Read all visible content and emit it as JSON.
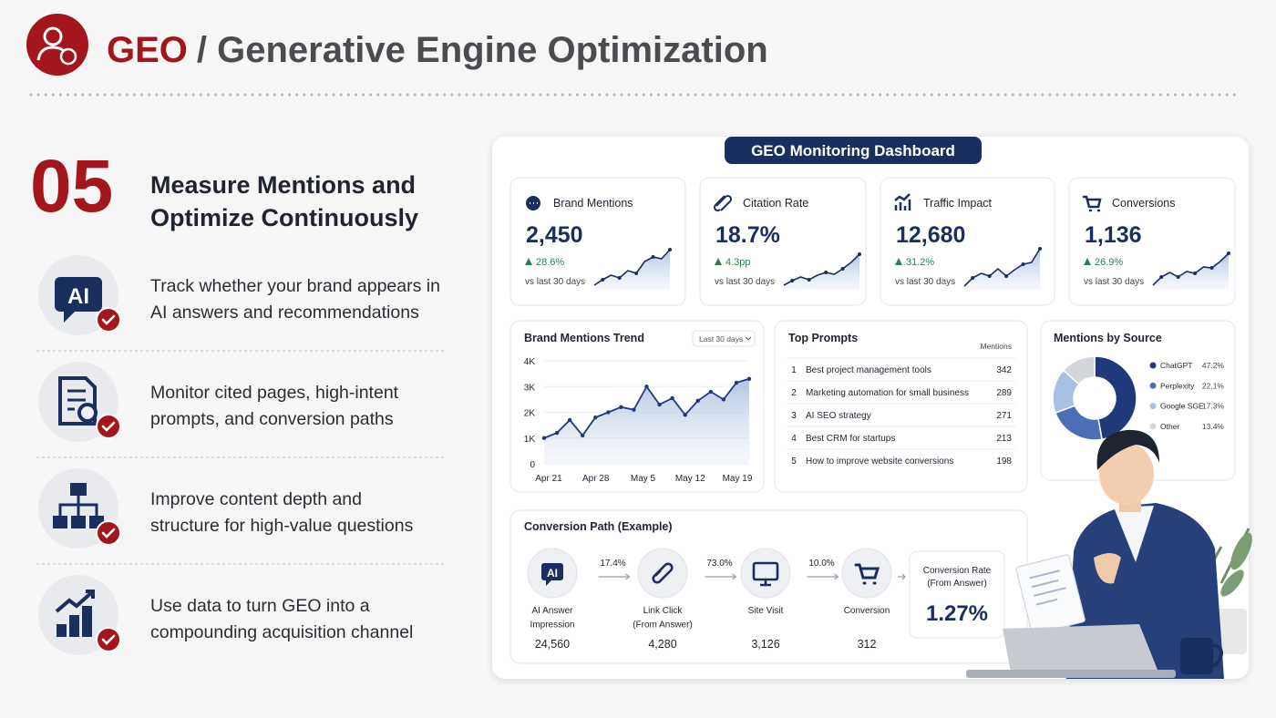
{
  "header": {
    "title_accent": "GEO",
    "title": "/ Generative Engine Optimization"
  },
  "step": {
    "number": "05",
    "heading": [
      "Measure Mentions and",
      "Optimize Continuously"
    ]
  },
  "items": [
    {
      "icon": "AI",
      "lines": [
        "Track whether your brand appears in",
        "AI answers and recommendations"
      ]
    },
    {
      "lines": [
        "Monitor cited pages, high-intent",
        "prompts, and conversion paths"
      ]
    },
    {
      "lines": [
        "Improve content depth and",
        "structure for high-value questions"
      ]
    },
    {
      "lines": [
        "Use data to turn GEO into a",
        "compounding acquisition channel"
      ]
    }
  ],
  "dashboard": {
    "title": "GEO Monitoring Dashboard",
    "kpis": [
      {
        "label": "Brand Mentions",
        "value": "2,450",
        "change": "28.6%",
        "period": "vs last 30 days",
        "sparkline": [
          10,
          22,
          32,
          26,
          42,
          36,
          62,
          72,
          68,
          88
        ]
      },
      {
        "label": "Citation Rate",
        "value": "18.7%",
        "change": "4.3pp",
        "period": "vs last 30 days",
        "sparkline": [
          10,
          20,
          28,
          22,
          32,
          38,
          34,
          46,
          60,
          78
        ]
      },
      {
        "label": "Traffic Impact",
        "value": "12,680",
        "change": "31.2%",
        "period": "vs last 30 days",
        "sparkline": [
          8,
          26,
          36,
          30,
          46,
          30,
          44,
          56,
          60,
          90
        ]
      },
      {
        "label": "Conversions",
        "value": "1,136",
        "change": "26.9%",
        "period": "vs last 30 days",
        "sparkline": [
          10,
          28,
          38,
          28,
          40,
          36,
          50,
          48,
          62,
          80
        ]
      }
    ],
    "trend": {
      "type": "line",
      "title": "Brand Mentions Trend",
      "range": "Last 30 days",
      "color": "#1f3a7a",
      "values": [
        1000,
        1200,
        1700,
        1100,
        1800,
        2000,
        2200,
        2100,
        3000,
        2300,
        2550,
        1900,
        2450,
        2800,
        2500,
        3150,
        3300
      ],
      "ylim": [
        0,
        4000
      ],
      "yticks": [
        0,
        {
          "value": 1000,
          "label": "1K"
        },
        {
          "value": 2000,
          "label": "2K"
        },
        {
          "value": 3000,
          "label": "3K"
        },
        {
          "value": 4000,
          "label": "4K"
        }
      ],
      "xticks": [
        "Apr 21",
        "Apr 28",
        "May 5",
        "May 12",
        "May 19"
      ]
    },
    "prompts": {
      "title": "Top Prompts",
      "column": "Mentions",
      "rows": [
        {
          "rank": 1,
          "prompt": "Best project management tools",
          "mentions": 342
        },
        {
          "rank": 2,
          "prompt": "Marketing automation for small business",
          "mentions": 289
        },
        {
          "rank": 3,
          "prompt": "AI SEO strategy",
          "mentions": 271
        },
        {
          "rank": 4,
          "prompt": "Best CRM for startups",
          "mentions": 213
        },
        {
          "rank": 5,
          "prompt": "How to improve website conversions",
          "mentions": 198
        }
      ]
    },
    "sources": {
      "type": "pie",
      "title": "Mentions by Source",
      "categories": [
        "ChatGPT",
        "Perplexity",
        "Google SGE",
        "Other"
      ],
      "values": [
        47.2,
        22.1,
        17.3,
        13.4
      ],
      "value_labels": [
        "47.2%",
        "22.1%",
        "17.3%",
        "13.4%"
      ],
      "colors": [
        "#1f3a7a",
        "#4a6fb5",
        "#a9c0e3",
        "#d3d6db"
      ]
    },
    "conversion": {
      "title": "Conversion Path (Example)",
      "steps": [
        {
          "icon": "AI",
          "label": [
            "AI Answer",
            "Impression"
          ],
          "value": "24,560"
        },
        {
          "label": [
            "Link Click",
            "(From Answer)"
          ],
          "value": "4,280"
        },
        {
          "label": [
            "Site Visit"
          ],
          "value": "3,126"
        },
        {
          "label": [
            "Conversion"
          ],
          "value": "312"
        }
      ],
      "rates": [
        "17.4%",
        "73.0%",
        "10.0%"
      ],
      "result": {
        "label": [
          "Conversion Rate",
          "(From Answer)"
        ],
        "value": "1.27%"
      }
    }
  }
}
